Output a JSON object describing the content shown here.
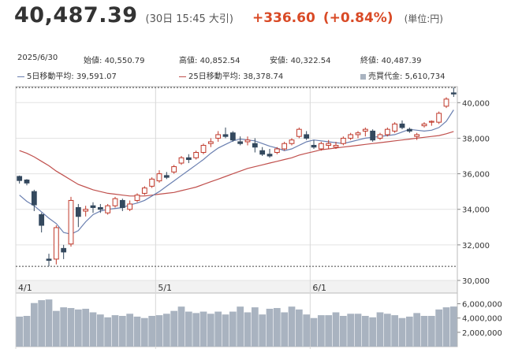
{
  "header": {
    "price": "40,487.39",
    "date_note": "(30日 15:45 大引)",
    "change": "+336.60",
    "change_pct": "(+0.84%)",
    "unit": "(単位:円)"
  },
  "info": {
    "date": "2025/6/30",
    "open_label": "始値:",
    "open": "40,550.79",
    "high_label": "高値:",
    "high": "40,852.54",
    "low_label": "安値:",
    "low": "40,322.54",
    "close_label": "終値:",
    "close": "40,487.39",
    "ma5_label": "5日移動平均:",
    "ma5": "39,591.07",
    "ma25_label": "25日移動平均:",
    "ma25": "38,378.74",
    "volume_label": "売買代金:",
    "volume": "5,610,734"
  },
  "colors": {
    "up": "#c0392b",
    "down": "#34495e",
    "ma5": "#6a7fb0",
    "ma25": "#c0504d",
    "volume": "#a9b3c0",
    "change": "#d94a26"
  },
  "chart_data": {
    "type": "candlestick",
    "y_ticks": [
      "40,000",
      "38,000",
      "36,000",
      "34,000",
      "32,000",
      "30,000"
    ],
    "y_tick_values": [
      40000,
      38000,
      36000,
      34000,
      32000,
      30000
    ],
    "ylim": [
      30000,
      40900
    ],
    "x_labels": [
      {
        "label": "4/1",
        "index": 0
      },
      {
        "label": "5/1",
        "index": 19
      },
      {
        "label": "6/1",
        "index": 40
      }
    ],
    "reference_lines": [
      40852.54,
      30792.74
    ],
    "candles": [
      [
        35850,
        35900,
        35450,
        35620
      ],
      [
        35650,
        35700,
        35350,
        35480
      ],
      [
        35000,
        35100,
        33900,
        34250
      ],
      [
        33700,
        33800,
        32700,
        33100
      ],
      [
        31200,
        31500,
        30790,
        31130
      ],
      [
        31200,
        33100,
        30900,
        32970
      ],
      [
        31800,
        32000,
        31200,
        31600
      ],
      [
        32050,
        34700,
        31900,
        34500
      ],
      [
        34100,
        34300,
        33000,
        33600
      ],
      [
        33900,
        34200,
        33600,
        34000
      ],
      [
        34200,
        34400,
        33800,
        34100
      ],
      [
        34100,
        34300,
        33800,
        34000
      ],
      [
        33800,
        34300,
        33700,
        34200
      ],
      [
        34200,
        34700,
        34100,
        34600
      ],
      [
        34500,
        34600,
        33900,
        34100
      ],
      [
        34000,
        34500,
        33900,
        34300
      ],
      [
        34500,
        34900,
        34400,
        34800
      ],
      [
        34900,
        35300,
        34800,
        35200
      ],
      [
        35300,
        35800,
        35200,
        35700
      ],
      [
        35600,
        36200,
        35500,
        36000
      ],
      [
        35900,
        36100,
        35700,
        35800
      ],
      [
        36100,
        36500,
        36000,
        36400
      ],
      [
        36600,
        37000,
        36500,
        36900
      ],
      [
        36900,
        37100,
        36600,
        36800
      ],
      [
        36900,
        37300,
        36800,
        37200
      ],
      [
        37200,
        37700,
        37100,
        37600
      ],
      [
        37700,
        38000,
        37500,
        37800
      ],
      [
        38000,
        38400,
        37800,
        38200
      ],
      [
        38200,
        38600,
        38000,
        38100
      ],
      [
        38300,
        38400,
        37800,
        37900
      ],
      [
        37800,
        38100,
        37600,
        37700
      ],
      [
        37800,
        38100,
        37600,
        37900
      ],
      [
        37700,
        38000,
        37200,
        37500
      ],
      [
        37300,
        37500,
        37000,
        37100
      ],
      [
        37100,
        37400,
        36900,
        37000
      ],
      [
        37200,
        37500,
        37100,
        37400
      ],
      [
        37400,
        37800,
        37300,
        37700
      ],
      [
        37700,
        38000,
        37600,
        37900
      ],
      [
        38100,
        38600,
        38000,
        38500
      ],
      [
        38200,
        38400,
        37900,
        38000
      ],
      [
        37600,
        37900,
        37400,
        37500
      ],
      [
        37400,
        37800,
        37300,
        37700
      ],
      [
        37600,
        37900,
        37400,
        37700
      ],
      [
        37500,
        37800,
        37400,
        37600
      ],
      [
        37700,
        38100,
        37600,
        38000
      ],
      [
        38000,
        38300,
        37900,
        38200
      ],
      [
        38200,
        38400,
        38000,
        38300
      ],
      [
        38400,
        38600,
        38100,
        38500
      ],
      [
        38400,
        38500,
        37800,
        37900
      ],
      [
        38000,
        38300,
        37900,
        38200
      ],
      [
        38200,
        38600,
        38100,
        38500
      ],
      [
        38400,
        38900,
        38300,
        38800
      ],
      [
        38800,
        39000,
        38500,
        38600
      ],
      [
        38500,
        38600,
        38300,
        38400
      ],
      [
        38100,
        38300,
        37900,
        38200
      ],
      [
        38700,
        38900,
        38600,
        38800
      ],
      [
        38900,
        39000,
        38700,
        38950
      ],
      [
        38900,
        39500,
        38800,
        39400
      ],
      [
        39800,
        40300,
        39700,
        40200
      ],
      [
        40550.79,
        40852.54,
        40322.54,
        40487.39
      ]
    ],
    "ma5": [
      34800,
      34450,
      34200,
      33850,
      33500,
      33200,
      32700,
      32600,
      32800,
      33300,
      33700,
      33900,
      34000,
      34050,
      34100,
      34250,
      34350,
      34500,
      34750,
      35000,
      35300,
      35600,
      35900,
      36200,
      36500,
      36800,
      37150,
      37450,
      37650,
      37850,
      37950,
      37900,
      37850,
      37700,
      37550,
      37450,
      37300,
      37400,
      37600,
      37800,
      37900,
      37850,
      37800,
      37750,
      37700,
      37800,
      37900,
      38000,
      38050,
      38100,
      38150,
      38200,
      38350,
      38500,
      38450,
      38400,
      38450,
      38600,
      38950,
      39591.07
    ],
    "ma25": [
      37300,
      37150,
      36950,
      36700,
      36450,
      36150,
      35900,
      35650,
      35400,
      35250,
      35100,
      35000,
      34900,
      34850,
      34800,
      34750,
      34750,
      34750,
      34800,
      34850,
      34900,
      34950,
      35050,
      35150,
      35250,
      35400,
      35550,
      35700,
      35850,
      36000,
      36150,
      36300,
      36400,
      36500,
      36600,
      36700,
      36800,
      36900,
      37050,
      37150,
      37250,
      37350,
      37400,
      37450,
      37500,
      37550,
      37600,
      37650,
      37700,
      37750,
      37800,
      37850,
      37900,
      37950,
      38000,
      38050,
      38100,
      38150,
      38250,
      38378.74
    ],
    "volume_ticks": [
      "6,000,000",
      "4,000,000",
      "2,000,000"
    ],
    "volume_tick_values": [
      6000000,
      4000000,
      2000000
    ],
    "volume_lim": [
      0,
      7500000
    ],
    "volume": [
      4200000,
      4300000,
      6100000,
      6500000,
      6600000,
      5000000,
      5500000,
      5400000,
      5200000,
      5300000,
      4800000,
      4500000,
      4100000,
      4400000,
      4300000,
      4600000,
      4200000,
      4000000,
      4300000,
      4400000,
      4600000,
      5000000,
      5600000,
      4900000,
      4700000,
      4900000,
      4600000,
      4900000,
      4500000,
      4900000,
      5600000,
      4800000,
      5500000,
      4500000,
      5300000,
      5400000,
      4800000,
      5600000,
      5200000,
      4500000,
      4000000,
      4400000,
      4400000,
      4800000,
      4300000,
      4600000,
      4600000,
      4300000,
      4100000,
      4800000,
      4600000,
      4400000,
      4000000,
      4200000,
      4700000,
      4300000,
      4300000,
      5200000,
      5500000,
      5610734
    ]
  }
}
